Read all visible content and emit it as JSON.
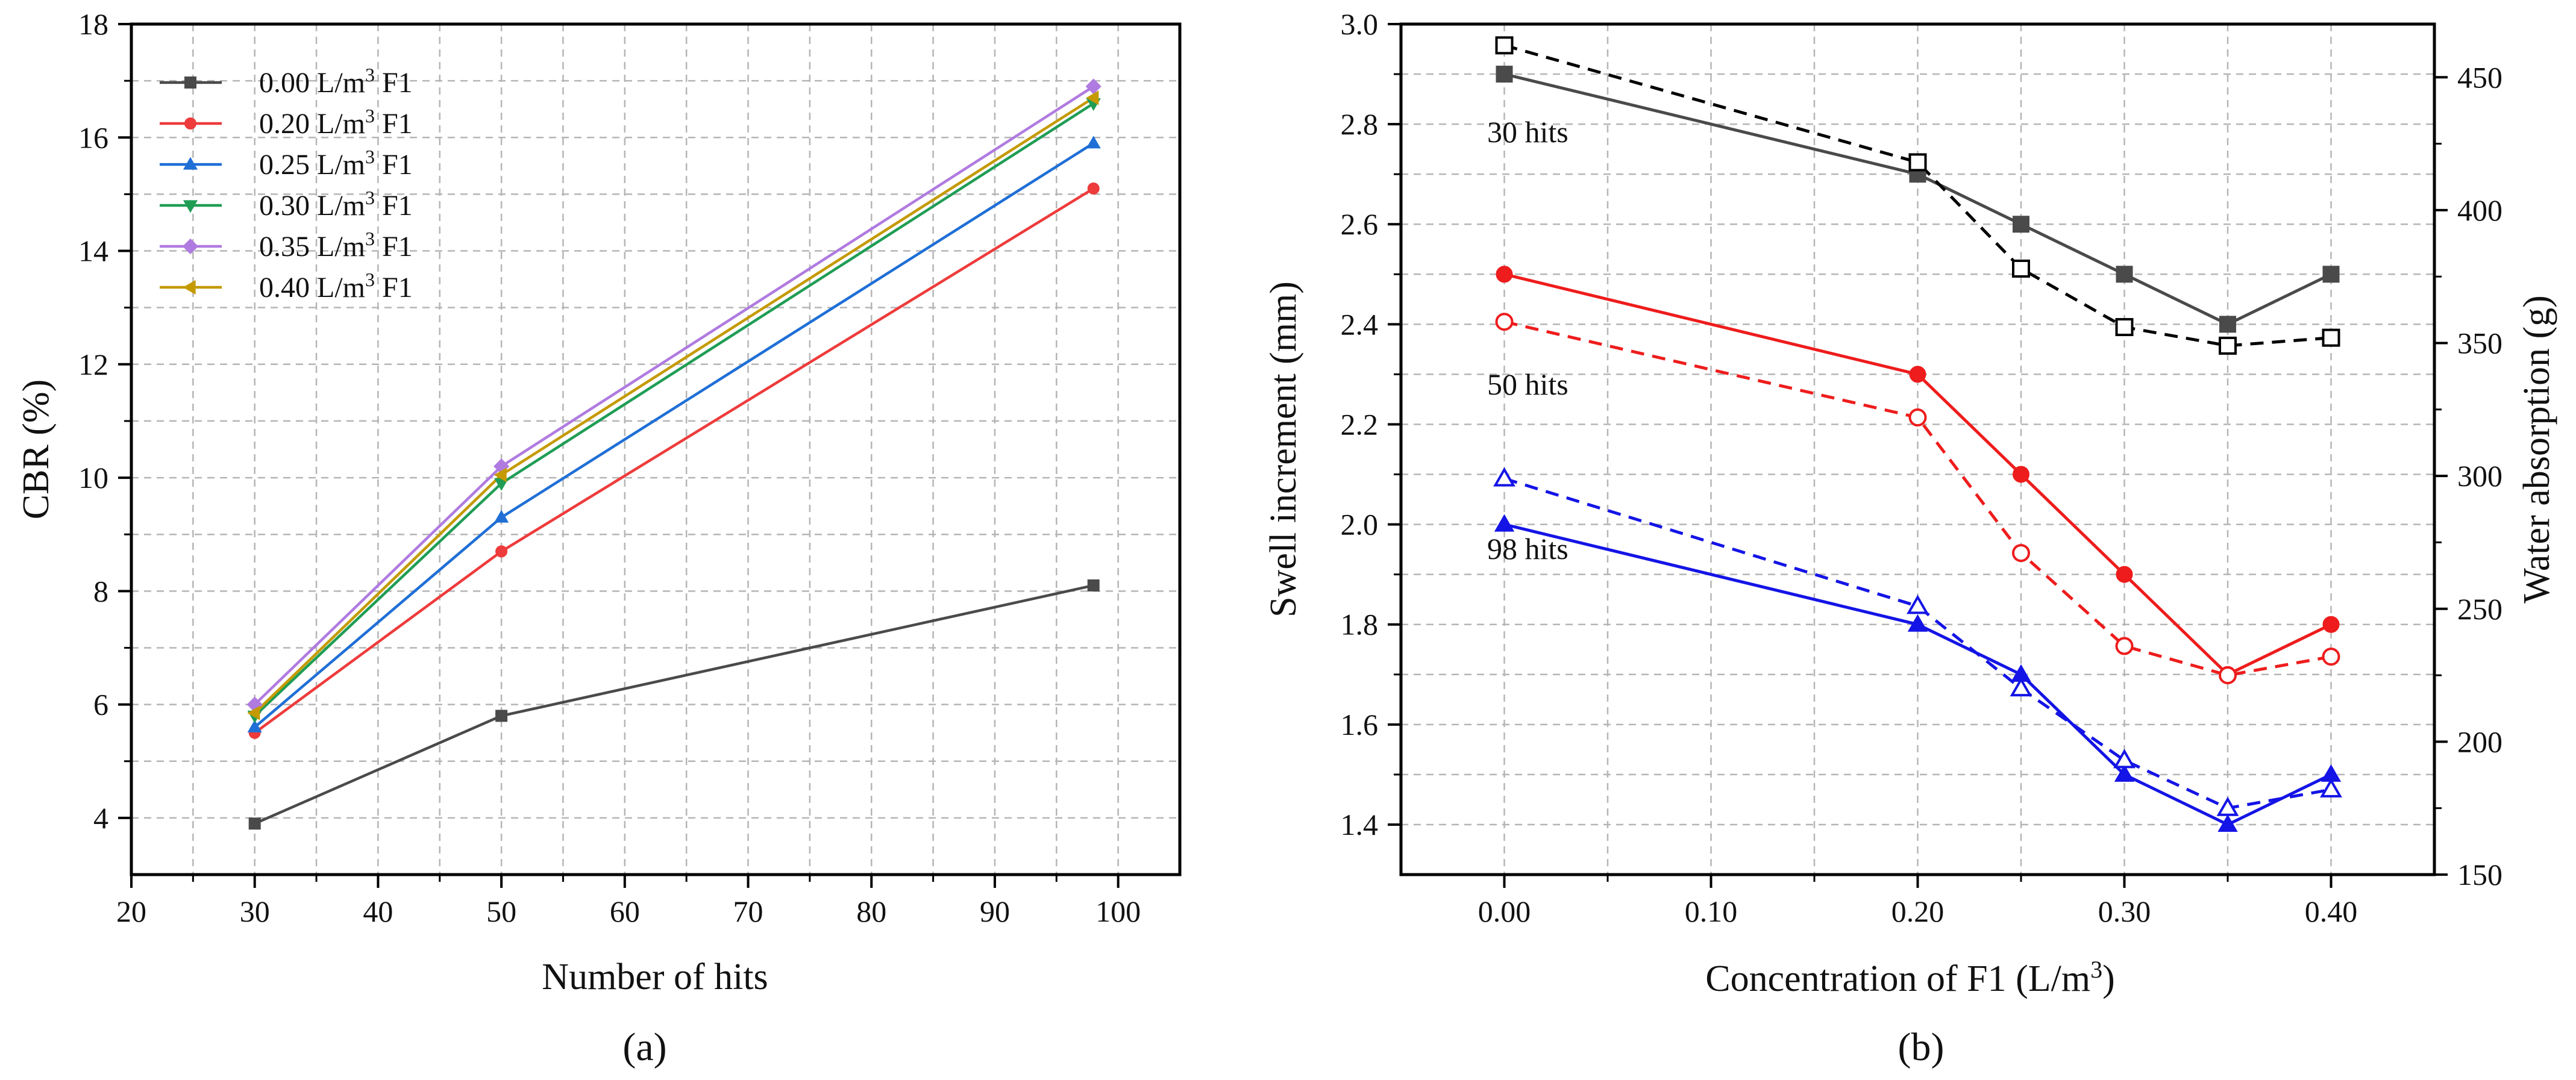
{
  "chart_data": [
    {
      "panel": "a",
      "panel_label": "(a)",
      "type": "line",
      "xlabel": "Number of hits",
      "ylabel": "CBR (%)",
      "xlim": [
        20,
        105
      ],
      "ylim": [
        3,
        18
      ],
      "xticks": [
        20,
        30,
        40,
        50,
        60,
        70,
        80,
        90,
        100
      ],
      "yticks": [
        4,
        6,
        8,
        10,
        12,
        14,
        16,
        18
      ],
      "grid": true,
      "legend_position": "top-left",
      "x": [
        30,
        50,
        98
      ],
      "series": [
        {
          "name": "0.00 L/m³ F1",
          "label_prefix": "0.00 L/m",
          "sup": "3",
          "label_suffix": " F1",
          "color": "#4a4a4a",
          "marker": "square",
          "values": [
            3.9,
            5.8,
            8.1
          ]
        },
        {
          "name": "0.20 L/m³ F1",
          "label_prefix": "0.20 L/m",
          "sup": "3",
          "label_suffix": " F1",
          "color": "#ee3b3b",
          "marker": "circle",
          "values": [
            5.5,
            8.7,
            15.1
          ]
        },
        {
          "name": "0.25 L/m³ F1",
          "label_prefix": "0.25 L/m",
          "sup": "3",
          "label_suffix": " F1",
          "color": "#1f6fd6",
          "marker": "triangle-up",
          "values": [
            5.6,
            9.3,
            15.9
          ]
        },
        {
          "name": "0.30 L/m³ F1",
          "label_prefix": "0.30 L/m",
          "sup": "3",
          "label_suffix": " F1",
          "color": "#1f9d55",
          "marker": "triangle-down",
          "values": [
            5.8,
            9.9,
            16.6
          ]
        },
        {
          "name": "0.35 L/m³ F1",
          "label_prefix": "0.35 L/m",
          "sup": "3",
          "label_suffix": " F1",
          "color": "#b07be0",
          "marker": "diamond",
          "values": [
            6.0,
            10.2,
            16.9
          ]
        },
        {
          "name": "0.40 L/m³ F1",
          "label_prefix": "0.40 L/m",
          "sup": "3",
          "label_suffix": " F1",
          "color": "#c49a00",
          "marker": "left-triangle",
          "values": [
            5.85,
            10.05,
            16.7
          ]
        }
      ]
    },
    {
      "panel": "b",
      "panel_label": "(b)",
      "type": "line",
      "xlabel": "Concentration of F1 (L/m³)",
      "xlabel_prefix": "Concentration of F1 (L/m",
      "xlabel_sup": "3",
      "xlabel_suffix": ")",
      "ylabel": "Swell increment (mm)",
      "ylabel_right": "Water absorption (g)",
      "xlim": [
        -0.05,
        0.45
      ],
      "ylim": [
        1.3,
        3.0
      ],
      "ylim_right": [
        150,
        470
      ],
      "xticks": [
        "0.00",
        "0.10",
        "0.20",
        "0.30",
        "0.40"
      ],
      "yticks": [
        "1.4",
        "1.6",
        "1.8",
        "2.0",
        "2.2",
        "2.4",
        "2.6",
        "2.8",
        "3.0"
      ],
      "yticks_right": [
        "150",
        "200",
        "250",
        "300",
        "350",
        "400",
        "450"
      ],
      "grid": true,
      "x": [
        0.0,
        0.2,
        0.25,
        0.3,
        0.35,
        0.4
      ],
      "series": [
        {
          "name": "30 hits swell increment",
          "axis": "left",
          "style": "solid",
          "color": "#4a4a4a",
          "marker": "square",
          "filled": true,
          "values": [
            2.9,
            2.7,
            2.6,
            2.5,
            2.4,
            2.5
          ]
        },
        {
          "name": "30 hits water absorption",
          "axis": "right",
          "style": "dashed",
          "color": "#000000",
          "marker": "square",
          "filled": false,
          "values": [
            462,
            418,
            378,
            356,
            349,
            352
          ]
        },
        {
          "name": "50 hits swell increment",
          "axis": "left",
          "style": "solid",
          "color": "#ee1c1c",
          "marker": "circle",
          "filled": true,
          "values": [
            2.5,
            2.3,
            2.1,
            1.9,
            1.7,
            1.8
          ]
        },
        {
          "name": "50 hits water absorption",
          "axis": "right",
          "style": "dashed",
          "color": "#ee1c1c",
          "marker": "circle",
          "filled": false,
          "values": [
            358,
            322,
            271,
            236,
            225,
            232
          ]
        },
        {
          "name": "98 hits swell increment",
          "axis": "left",
          "style": "solid",
          "color": "#1414e6",
          "marker": "triangle-up",
          "filled": true,
          "values": [
            2.0,
            1.8,
            1.7,
            1.5,
            1.4,
            1.5
          ]
        },
        {
          "name": "98 hits water absorption",
          "axis": "right",
          "style": "dashed",
          "color": "#1414e6",
          "marker": "triangle-up",
          "filled": false,
          "values": [
            299,
            251,
            220,
            193,
            175,
            182
          ]
        }
      ],
      "annotations": [
        "30 hits",
        "50 hits",
        "98 hits"
      ]
    }
  ]
}
